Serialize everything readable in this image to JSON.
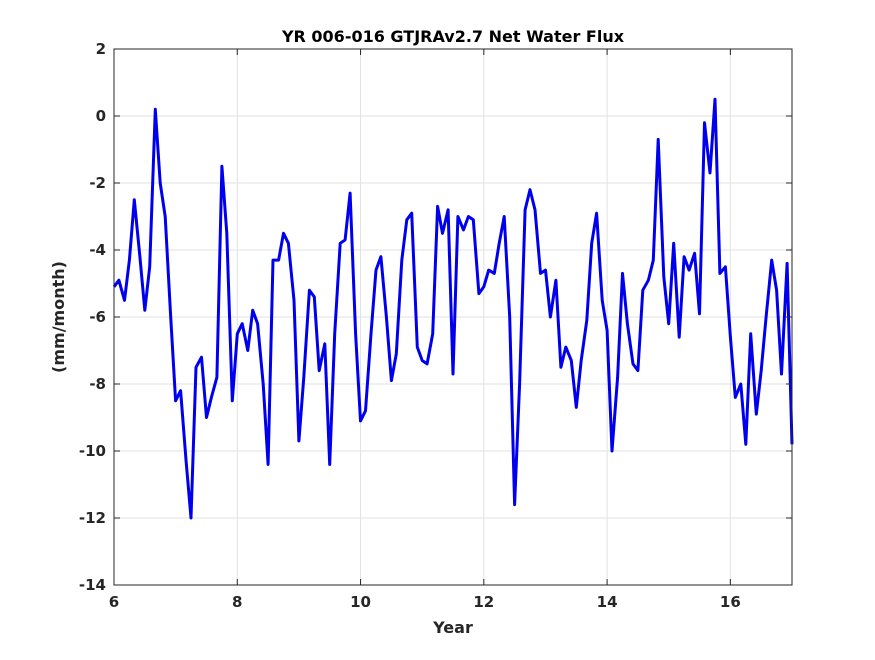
{
  "chart_data": {
    "type": "line",
    "title": "YR 006-016 GTJRAv2.7 Net Water Flux",
    "xlabel": "Year",
    "ylabel": "(mm/month)",
    "xlim": [
      6,
      17
    ],
    "ylim": [
      -14,
      2
    ],
    "xticks": [
      6,
      8,
      10,
      12,
      14,
      16
    ],
    "yticks": [
      -14,
      -12,
      -10,
      -8,
      -6,
      -4,
      -2,
      0,
      2
    ],
    "grid": true,
    "legend": "none",
    "series": [
      {
        "color": "#0000ee",
        "x": [
          6.0,
          6.08,
          6.17,
          6.25,
          6.33,
          6.42,
          6.5,
          6.58,
          6.67,
          6.75,
          6.83,
          6.92,
          7.0,
          7.08,
          7.17,
          7.25,
          7.33,
          7.42,
          7.5,
          7.58,
          7.67,
          7.75,
          7.83,
          7.92,
          8.0,
          8.08,
          8.17,
          8.25,
          8.33,
          8.42,
          8.5,
          8.58,
          8.67,
          8.75,
          8.83,
          8.92,
          9.0,
          9.08,
          9.17,
          9.25,
          9.33,
          9.42,
          9.5,
          9.58,
          9.67,
          9.75,
          9.83,
          9.92,
          10.0,
          10.08,
          10.17,
          10.25,
          10.33,
          10.42,
          10.5,
          10.58,
          10.67,
          10.75,
          10.83,
          10.92,
          11.0,
          11.08,
          11.17,
          11.25,
          11.33,
          11.42,
          11.5,
          11.58,
          11.67,
          11.75,
          11.83,
          11.92,
          12.0,
          12.08,
          12.17,
          12.25,
          12.33,
          12.42,
          12.5,
          12.58,
          12.67,
          12.75,
          12.83,
          12.92,
          13.0,
          13.08,
          13.17,
          13.25,
          13.33,
          13.42,
          13.5,
          13.58,
          13.67,
          13.75,
          13.83,
          13.92,
          14.0,
          14.08,
          14.17,
          14.25,
          14.33,
          14.42,
          14.5,
          14.58,
          14.67,
          14.75,
          14.83,
          14.92,
          15.0,
          15.08,
          15.17,
          15.25,
          15.33,
          15.42,
          15.5,
          15.58,
          15.67,
          15.75,
          15.83,
          15.92,
          16.0,
          16.08,
          16.17,
          16.25,
          16.33,
          16.42,
          16.5,
          16.58,
          16.67,
          16.75,
          16.83,
          16.92,
          17.0
        ],
        "y": [
          -5.1,
          -4.9,
          -5.5,
          -4.3,
          -2.5,
          -4.2,
          -5.8,
          -4.5,
          0.2,
          -2.0,
          -3.0,
          -6.0,
          -8.5,
          -8.2,
          -10.3,
          -12.0,
          -7.5,
          -7.2,
          -9.0,
          -8.4,
          -7.8,
          -1.5,
          -3.5,
          -8.5,
          -6.5,
          -6.2,
          -7.0,
          -5.8,
          -6.2,
          -8.0,
          -10.4,
          -4.3,
          -4.3,
          -3.5,
          -3.8,
          -5.5,
          -9.7,
          -7.8,
          -5.2,
          -5.4,
          -7.6,
          -6.8,
          -10.4,
          -6.5,
          -3.8,
          -3.7,
          -2.3,
          -6.5,
          -9.1,
          -8.8,
          -6.5,
          -4.6,
          -4.2,
          -6.0,
          -7.9,
          -7.1,
          -4.3,
          -3.1,
          -2.9,
          -6.9,
          -7.3,
          -7.4,
          -6.5,
          -2.7,
          -3.5,
          -2.8,
          -7.7,
          -3.0,
          -3.4,
          -3.0,
          -3.1,
          -5.3,
          -5.1,
          -4.6,
          -4.7,
          -3.8,
          -3.0,
          -6.0,
          -11.6,
          -8.0,
          -2.8,
          -2.2,
          -2.8,
          -4.7,
          -4.6,
          -6.0,
          -4.9,
          -7.5,
          -6.9,
          -7.3,
          -8.7,
          -7.3,
          -6.1,
          -3.8,
          -2.9,
          -5.5,
          -6.4,
          -10.0,
          -7.8,
          -4.7,
          -6.2,
          -7.4,
          -7.6,
          -5.2,
          -4.9,
          -4.3,
          -0.7,
          -4.8,
          -6.2,
          -3.8,
          -6.6,
          -4.2,
          -4.6,
          -4.1,
          -5.9,
          -0.2,
          -1.7,
          0.5,
          -4.7,
          -4.5,
          -6.6,
          -8.4,
          -8.0,
          -9.8,
          -6.5,
          -8.9,
          -7.6,
          -6.0,
          -4.3,
          -5.2,
          -7.7,
          -4.4,
          -9.8
        ]
      }
    ]
  }
}
